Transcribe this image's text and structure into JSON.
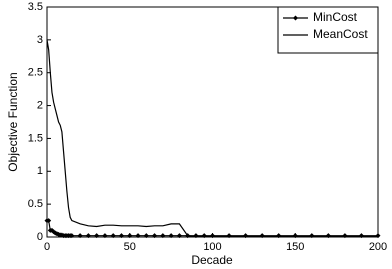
{
  "chart_data": {
    "type": "line",
    "xlabel": "Decade",
    "ylabel": "Objective Function",
    "x": [
      0,
      1,
      2,
      3,
      4,
      5,
      6,
      7,
      8,
      9,
      10,
      11,
      12,
      13,
      14,
      15,
      20,
      25,
      30,
      35,
      40,
      45,
      50,
      55,
      60,
      65,
      70,
      75,
      80,
      85,
      90,
      95,
      100,
      110,
      120,
      130,
      140,
      150,
      160,
      170,
      180,
      190,
      200
    ],
    "series": [
      {
        "name": "MinCost",
        "color": "#000000",
        "marker": "diamond",
        "values": [
          0.25,
          0.25,
          0.1,
          0.1,
          0.08,
          0.06,
          0.05,
          0.04,
          0.03,
          0.03,
          0.02,
          0.02,
          0.02,
          0.02,
          0.02,
          0.02,
          0.02,
          0.02,
          0.02,
          0.02,
          0.02,
          0.02,
          0.02,
          0.02,
          0.02,
          0.02,
          0.02,
          0.02,
          0.02,
          0.02,
          0.02,
          0.02,
          0.02,
          0.02,
          0.02,
          0.02,
          0.02,
          0.02,
          0.02,
          0.02,
          0.02,
          0.02,
          0.02
        ]
      },
      {
        "name": "MeanCost",
        "color": "#000000",
        "values": [
          3.0,
          2.85,
          2.5,
          2.2,
          2.05,
          1.95,
          1.85,
          1.75,
          1.7,
          1.6,
          1.3,
          1.0,
          0.7,
          0.45,
          0.3,
          0.25,
          0.2,
          0.17,
          0.16,
          0.18,
          0.18,
          0.17,
          0.17,
          0.17,
          0.16,
          0.17,
          0.17,
          0.2,
          0.2,
          0.02,
          0.01,
          0.01,
          0.01,
          0.01,
          0.01,
          0.01,
          0.01,
          0.01,
          0.01,
          0.01,
          0.01,
          0.01,
          0.01
        ]
      }
    ],
    "xlim": [
      0,
      200
    ],
    "xticks": [
      0,
      50,
      100,
      150,
      200
    ],
    "ylim": [
      0,
      3.5
    ],
    "yticks": [
      0,
      0.5,
      1,
      1.5,
      2,
      2.5,
      3,
      3.5
    ],
    "legend": "upper-right",
    "grid": false
  }
}
